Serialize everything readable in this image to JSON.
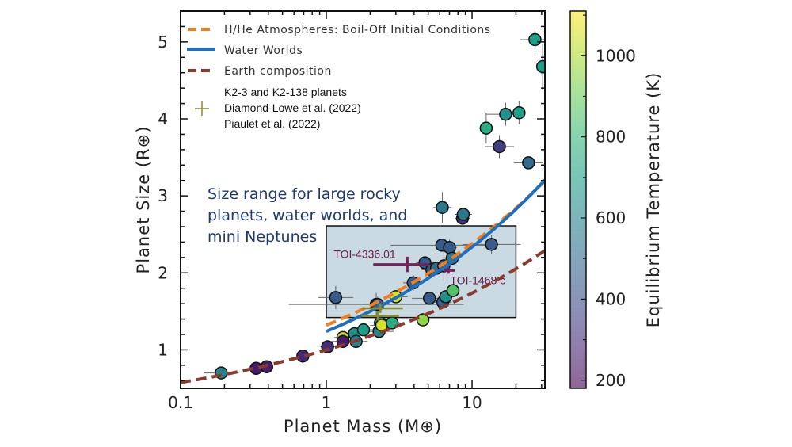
{
  "chart_data": {
    "type": "scatter",
    "xlabel": "Planet Mass (M⊕)",
    "ylabel": "Planet Size (R⊕)",
    "xscale": "log",
    "xlim": [
      0.1,
      31.6
    ],
    "ylim": [
      0.5,
      5.4
    ],
    "xticks": [
      {
        "v": 0.1,
        "label": "0.1"
      },
      {
        "v": 1,
        "label": "1"
      },
      {
        "v": 10,
        "label": "10"
      }
    ],
    "yticks": [
      {
        "v": 1,
        "label": "1"
      },
      {
        "v": 2,
        "label": "2"
      },
      {
        "v": 3,
        "label": "3"
      },
      {
        "v": 4,
        "label": "4"
      },
      {
        "v": 5,
        "label": "5"
      }
    ],
    "colorbar": {
      "label": "Equilibrium Temperature (K)",
      "range": [
        180,
        1110
      ],
      "ticks": [
        {
          "v": 200,
          "label": "200"
        },
        {
          "v": 400,
          "label": "400"
        },
        {
          "v": 600,
          "label": "600"
        },
        {
          "v": 800,
          "label": "800"
        },
        {
          "v": 1000,
          "label": "1000"
        }
      ]
    },
    "legend": {
      "placement": "top-left",
      "entries": [
        {
          "label": "H/He Atmospheres: Boil-Off Initial Conditions",
          "color": "#f07f1e",
          "style": "dashed"
        },
        {
          "label": "Water Worlds",
          "color": "#1f6fbf",
          "style": "solid"
        },
        {
          "label": "Earth composition",
          "color": "#8b3a2e",
          "style": "dashed"
        },
        {
          "label_lines": [
            "K2-3 and K2-138 planets",
            "Diamond-Lowe et al. (2022)",
            "Piaulet et al. (2022)"
          ],
          "color": "#8a8a2a",
          "style": "cross"
        }
      ]
    },
    "curves": [
      {
        "name": "H/He Atmospheres: Boil-Off Initial Conditions",
        "coef": 1.32,
        "exp": 0.256,
        "xrange": [
          1,
          31.6
        ],
        "color": "#f07f1e",
        "dashed": true
      },
      {
        "name": "Water Worlds",
        "coef": 1.24,
        "exp": 0.275,
        "xrange": [
          1,
          31.6
        ],
        "color": "#1f6fbf",
        "dashed": false
      },
      {
        "name": "Earth composition",
        "coef": 1.0,
        "exp": 0.24,
        "xrange": [
          0.1,
          31.6
        ],
        "color": "#8b3a2e",
        "dashed": true
      }
    ],
    "region": {
      "mass": [
        1,
        20
      ],
      "radius": [
        1.42,
        2.61
      ],
      "color": "#b8cdd8",
      "label_lines": [
        "Size range for large rocky",
        "planets, water worlds, and",
        "mini Neptunes"
      ]
    },
    "points": [
      {
        "m": 0.19,
        "r": 0.7,
        "t": 600,
        "xe": 0.12,
        "ye": 0.03
      },
      {
        "m": 0.33,
        "r": 0.76,
        "t": 250,
        "xe": 0.02,
        "ye": 0.02
      },
      {
        "m": 0.39,
        "r": 0.78,
        "t": 250,
        "xe": 0.02,
        "ye": 0.02
      },
      {
        "m": 0.69,
        "r": 0.92,
        "t": 280,
        "xe": 0.03,
        "ye": 0.03
      },
      {
        "m": 1.02,
        "r": 1.04,
        "t": 300,
        "xe": 0.05,
        "ye": 0.03
      },
      {
        "m": 1.3,
        "r": 1.16,
        "t": 1050,
        "xe": 0.06,
        "ye": 0.04
      },
      {
        "m": 1.3,
        "r": 1.11,
        "t": 250,
        "xe": 0.08,
        "ye": 0.05
      },
      {
        "m": 1.56,
        "r": 1.21,
        "t": 650,
        "xe": 0.08,
        "ye": 0.05
      },
      {
        "m": 1.6,
        "r": 1.11,
        "t": 600,
        "xe": 0.08,
        "ye": 0.05
      },
      {
        "m": 1.8,
        "r": 1.26,
        "t": 700,
        "xe": 0.1,
        "ye": 0.05
      },
      {
        "m": 2.3,
        "r": 1.24,
        "t": 600,
        "xe": 0.1,
        "ye": 0.05
      },
      {
        "m": 2.35,
        "r": 1.35,
        "t": 600,
        "xe": 0.08,
        "ye": 0.06
      },
      {
        "m": 2.4,
        "r": 1.32,
        "t": 1050,
        "xe": 0.08,
        "ye": 0.06
      },
      {
        "m": 2.83,
        "r": 1.35,
        "t": 750,
        "xe": 0.06,
        "ye": 0.05
      },
      {
        "m": 1.16,
        "r": 1.68,
        "t": 450,
        "xe": 0.12,
        "ye": 0.15
      },
      {
        "m": 2.2,
        "r": 1.59,
        "t": 450,
        "xe": 0.6,
        "ye": 0.15
      },
      {
        "m": 2.25,
        "r": 1.59,
        "t": 450,
        "xe": 0.1,
        "ye": 0.1
      },
      {
        "m": 3.0,
        "r": 1.69,
        "t": 1050,
        "xe": 0.08,
        "ye": 0.06
      },
      {
        "m": 3.95,
        "r": 1.87,
        "t": 450,
        "xe": 0.07,
        "ye": 0.1
      },
      {
        "m": 4.6,
        "r": 1.39,
        "t": 950,
        "xe": 0.04,
        "ye": 0.05
      },
      {
        "m": 4.75,
        "r": 2.13,
        "t": 450,
        "xe": 0.06,
        "ye": 0.08
      },
      {
        "m": 5.1,
        "r": 1.67,
        "t": 450,
        "xe": 0.12,
        "ye": 0.06
      },
      {
        "m": 5.3,
        "r": 2.04,
        "t": 450,
        "xe": 0.07,
        "ye": 0.08
      },
      {
        "m": 5.7,
        "r": 2.06,
        "t": 500,
        "xe": 0.06,
        "ye": 0.06
      },
      {
        "m": 6.2,
        "r": 2.36,
        "t": 450,
        "xe": 0.35,
        "ye": 0.08
      },
      {
        "m": 6.3,
        "r": 1.62,
        "t": 450,
        "xe": 0.06,
        "ye": 0.06
      },
      {
        "m": 6.4,
        "r": 2.09,
        "t": 450,
        "xe": 0.06,
        "ye": 0.2
      },
      {
        "m": 6.6,
        "r": 1.69,
        "t": 650,
        "xe": 0.05,
        "ye": 0.05
      },
      {
        "m": 7.0,
        "r": 2.33,
        "t": 450,
        "xe": 0.05,
        "ye": 0.1
      },
      {
        "m": 7.3,
        "r": 2.19,
        "t": 550,
        "xe": 0.05,
        "ye": 0.08
      },
      {
        "m": 7.4,
        "r": 1.77,
        "t": 850,
        "xe": 0.04,
        "ye": 0.05
      },
      {
        "m": 13.6,
        "r": 2.37,
        "t": 450,
        "xe": 0.2,
        "ye": 0.12
      },
      {
        "m": 6.25,
        "r": 2.85,
        "t": 550,
        "xe": 0.06,
        "ye": 0.2
      },
      {
        "m": 8.6,
        "r": 2.71,
        "t": 300,
        "xe": 0.05,
        "ye": 0.04
      },
      {
        "m": 8.7,
        "r": 2.76,
        "t": 550,
        "xe": 0.06,
        "ye": 0.08
      },
      {
        "m": 12.5,
        "r": 3.88,
        "t": 750,
        "xe": 0.05,
        "ye": 0.2
      },
      {
        "m": 15.4,
        "r": 3.64,
        "t": 350,
        "xe": 0.1,
        "ye": 0.15
      },
      {
        "m": 17.0,
        "r": 4.06,
        "t": 650,
        "xe": 0.13,
        "ye": 0.15
      },
      {
        "m": 21.0,
        "r": 4.08,
        "t": 700,
        "xe": 0.04,
        "ye": 0.15
      },
      {
        "m": 24.4,
        "r": 3.43,
        "t": 500,
        "xe": 0.1,
        "ye": 0.07
      },
      {
        "m": 27.0,
        "r": 5.03,
        "t": 700,
        "xe": 0.1,
        "ye": 0.15
      },
      {
        "m": 30.5,
        "r": 4.68,
        "t": 700,
        "xe": 0.03,
        "ye": 0.3
      }
    ],
    "k2_points": [
      {
        "m": 2.35,
        "r": 1.54,
        "xe_lo": 0.6,
        "xe_hi": 1.0,
        "ye": 0.06
      },
      {
        "m": 2.25,
        "r": 1.44,
        "xe_lo": 0.5,
        "xe_hi": 0.9,
        "ye": 0.06
      }
    ],
    "highlighted": [
      {
        "label": "TOI-4336.01",
        "m": 3.6,
        "r": 2.11,
        "m_lo": 2.1,
        "m_hi": 5.1,
        "ye": 0.1,
        "color": "#7b1e5a"
      },
      {
        "label": "TOI-1468 c",
        "m": 6.9,
        "r": 2.03,
        "m_lo": 6.4,
        "m_hi": 7.6,
        "ye": 0.04,
        "color": "#7b1e5a"
      }
    ]
  }
}
